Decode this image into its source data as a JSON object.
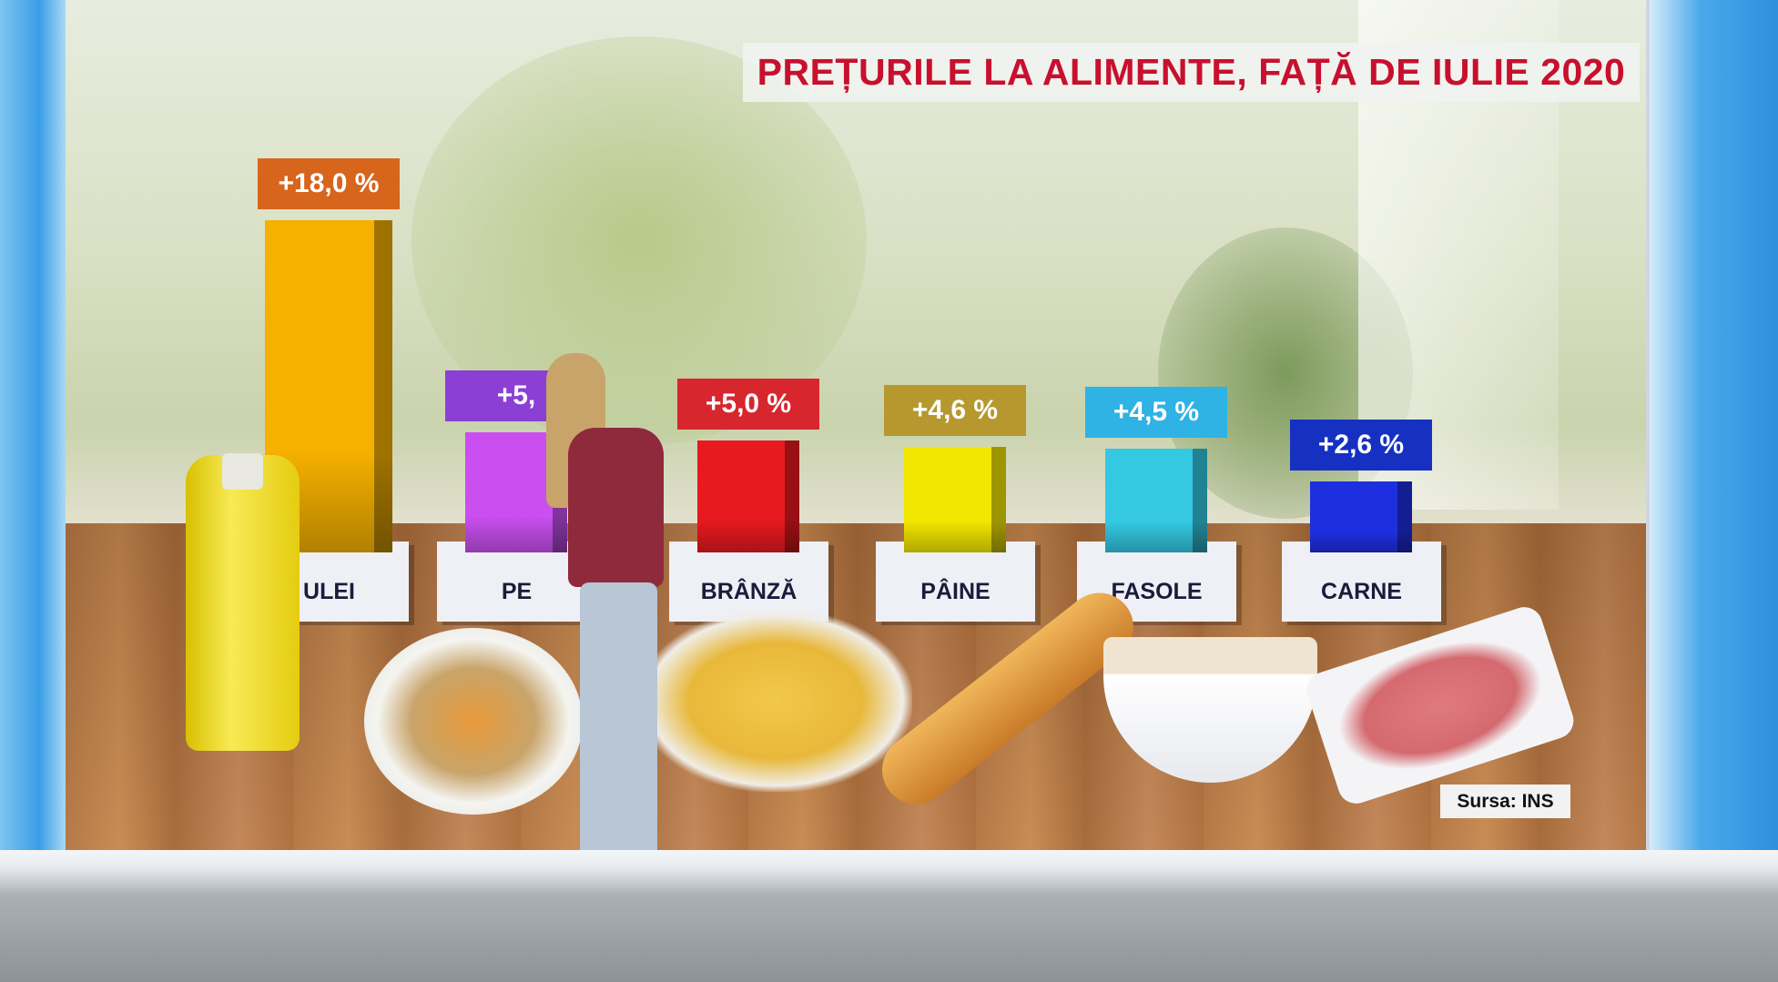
{
  "title": "PREȚURILE LA ALIMENTE, FAȚĂ DE IULIE 2020",
  "source": "Sursa: INS",
  "chart_data": {
    "type": "bar",
    "title": "PREȚURILE LA ALIMENTE, FAȚĂ DE IULIE 2020",
    "categories": [
      "ULEI",
      "PE",
      "BRÂNZĂ",
      "PÂINE",
      "FASOLE",
      "CARNE"
    ],
    "values": [
      18.0,
      5.5,
      5.0,
      4.6,
      4.5,
      2.6
    ],
    "data_labels": [
      "+18,0 %",
      "+5,",
      "+5,0 %",
      "+4,6 %",
      "+4,5 %",
      "+2,6 %"
    ],
    "unit": "%",
    "bar_colors": [
      "#f5b000",
      "#c94ff0",
      "#e81a20",
      "#f3e600",
      "#34c8e2",
      "#1e2fe0"
    ],
    "label_colors": [
      "#d8651c",
      "#8b3fd4",
      "#d8262e",
      "#b6982e",
      "#2fb2e4",
      "#1631c2"
    ],
    "source": "Sursa: INS",
    "grid": false,
    "legend": "none"
  }
}
